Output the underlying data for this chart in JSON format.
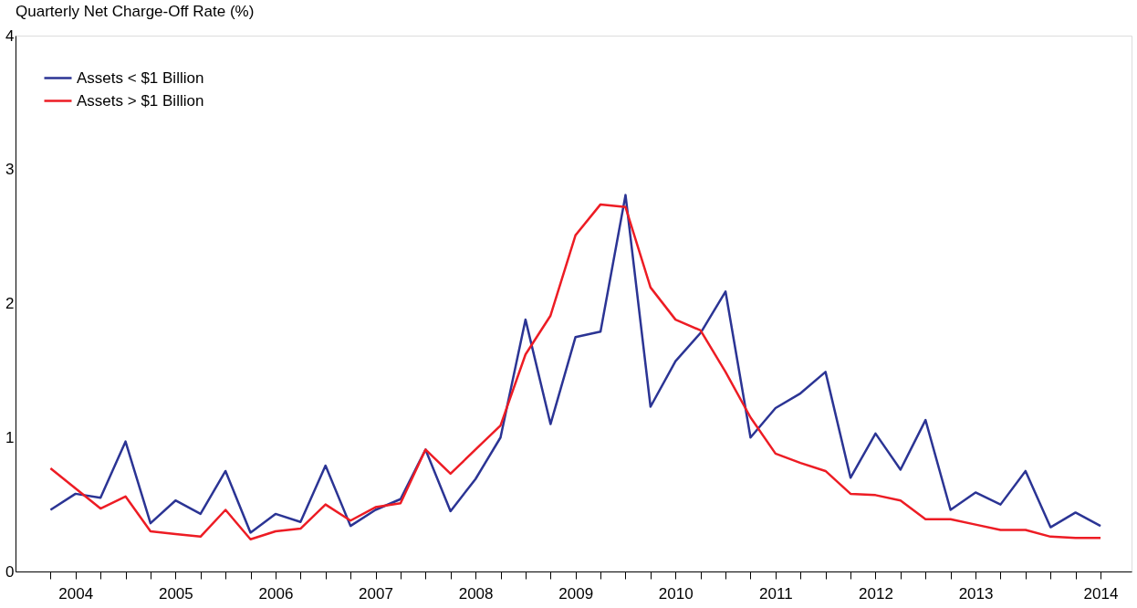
{
  "chart_data": {
    "type": "line",
    "title": "Quarterly Net Charge-Off Rate (%)",
    "x": [
      2004.0,
      2004.25,
      2004.5,
      2004.75,
      2005.0,
      2005.25,
      2005.5,
      2005.75,
      2006.0,
      2006.25,
      2006.5,
      2006.75,
      2007.0,
      2007.25,
      2007.5,
      2007.75,
      2008.0,
      2008.25,
      2008.5,
      2008.75,
      2009.0,
      2009.25,
      2009.5,
      2009.75,
      2010.0,
      2010.25,
      2010.5,
      2010.75,
      2011.0,
      2011.25,
      2011.5,
      2011.75,
      2012.0,
      2012.25,
      2012.5,
      2012.75,
      2013.0,
      2013.25,
      2013.5,
      2013.75,
      2014.0,
      2014.25,
      2014.5
    ],
    "series": [
      {
        "name": "Assets < $1 Billion",
        "color": "#2b3494",
        "values": [
          0.46,
          0.58,
          0.55,
          0.97,
          0.36,
          0.53,
          0.43,
          0.75,
          0.29,
          0.43,
          0.37,
          0.79,
          0.34,
          0.46,
          0.54,
          0.91,
          0.45,
          0.69,
          1.0,
          1.88,
          1.1,
          1.75,
          1.79,
          2.81,
          1.23,
          1.57,
          1.78,
          2.09,
          1.0,
          1.22,
          1.33,
          1.49,
          0.7,
          1.03,
          0.76,
          1.13,
          0.46,
          0.59,
          0.5,
          0.75,
          0.33,
          0.44,
          0.34
        ]
      },
      {
        "name": "Assets > $1 Billion",
        "color": "#ed1c24",
        "values": [
          0.77,
          0.62,
          0.47,
          0.56,
          0.3,
          0.28,
          0.26,
          0.46,
          0.24,
          0.3,
          0.32,
          0.5,
          0.38,
          0.48,
          0.51,
          0.91,
          0.73,
          0.91,
          1.09,
          1.62,
          1.91,
          2.51,
          2.74,
          2.72,
          2.12,
          1.88,
          1.8,
          1.49,
          1.15,
          0.88,
          0.81,
          0.75,
          0.58,
          0.57,
          0.53,
          0.39,
          0.39,
          0.35,
          0.31,
          0.31,
          0.26,
          0.25,
          0.25
        ]
      }
    ],
    "xlim": [
      2003.65,
      2014.81
    ],
    "xticks": [
      {
        "value": 2004.0,
        "label": null
      },
      {
        "value": 2004.25,
        "label": "2004"
      },
      {
        "value": 2004.5,
        "label": null
      },
      {
        "value": 2004.75,
        "label": null
      },
      {
        "value": 2005.0,
        "label": null
      },
      {
        "value": 2005.25,
        "label": "2005"
      },
      {
        "value": 2005.5,
        "label": null
      },
      {
        "value": 2005.75,
        "label": null
      },
      {
        "value": 2006.0,
        "label": null
      },
      {
        "value": 2006.25,
        "label": "2006"
      },
      {
        "value": 2006.5,
        "label": null
      },
      {
        "value": 2006.75,
        "label": null
      },
      {
        "value": 2007.0,
        "label": null
      },
      {
        "value": 2007.25,
        "label": "2007"
      },
      {
        "value": 2007.5,
        "label": null
      },
      {
        "value": 2007.75,
        "label": null
      },
      {
        "value": 2008.0,
        "label": null
      },
      {
        "value": 2008.25,
        "label": "2008"
      },
      {
        "value": 2008.5,
        "label": null
      },
      {
        "value": 2008.75,
        "label": null
      },
      {
        "value": 2009.0,
        "label": null
      },
      {
        "value": 2009.25,
        "label": "2009"
      },
      {
        "value": 2009.5,
        "label": null
      },
      {
        "value": 2009.75,
        "label": null
      },
      {
        "value": 2010.0,
        "label": null
      },
      {
        "value": 2010.25,
        "label": "2010"
      },
      {
        "value": 2010.5,
        "label": null
      },
      {
        "value": 2010.75,
        "label": null
      },
      {
        "value": 2011.0,
        "label": null
      },
      {
        "value": 2011.25,
        "label": "2011"
      },
      {
        "value": 2011.5,
        "label": null
      },
      {
        "value": 2011.75,
        "label": null
      },
      {
        "value": 2012.0,
        "label": null
      },
      {
        "value": 2012.25,
        "label": "2012"
      },
      {
        "value": 2012.5,
        "label": null
      },
      {
        "value": 2012.75,
        "label": null
      },
      {
        "value": 2013.0,
        "label": null
      },
      {
        "value": 2013.25,
        "label": "2013"
      },
      {
        "value": 2013.5,
        "label": null
      },
      {
        "value": 2013.75,
        "label": null
      },
      {
        "value": 2014.0,
        "label": null
      },
      {
        "value": 2014.25,
        "label": null
      },
      {
        "value": 2014.5,
        "label": "2014"
      }
    ],
    "ylim": [
      0,
      4
    ],
    "yticks": [
      0,
      1,
      2,
      3,
      4
    ],
    "grid": false,
    "legend": "top left",
    "marker": "none",
    "line_style": "solid"
  }
}
